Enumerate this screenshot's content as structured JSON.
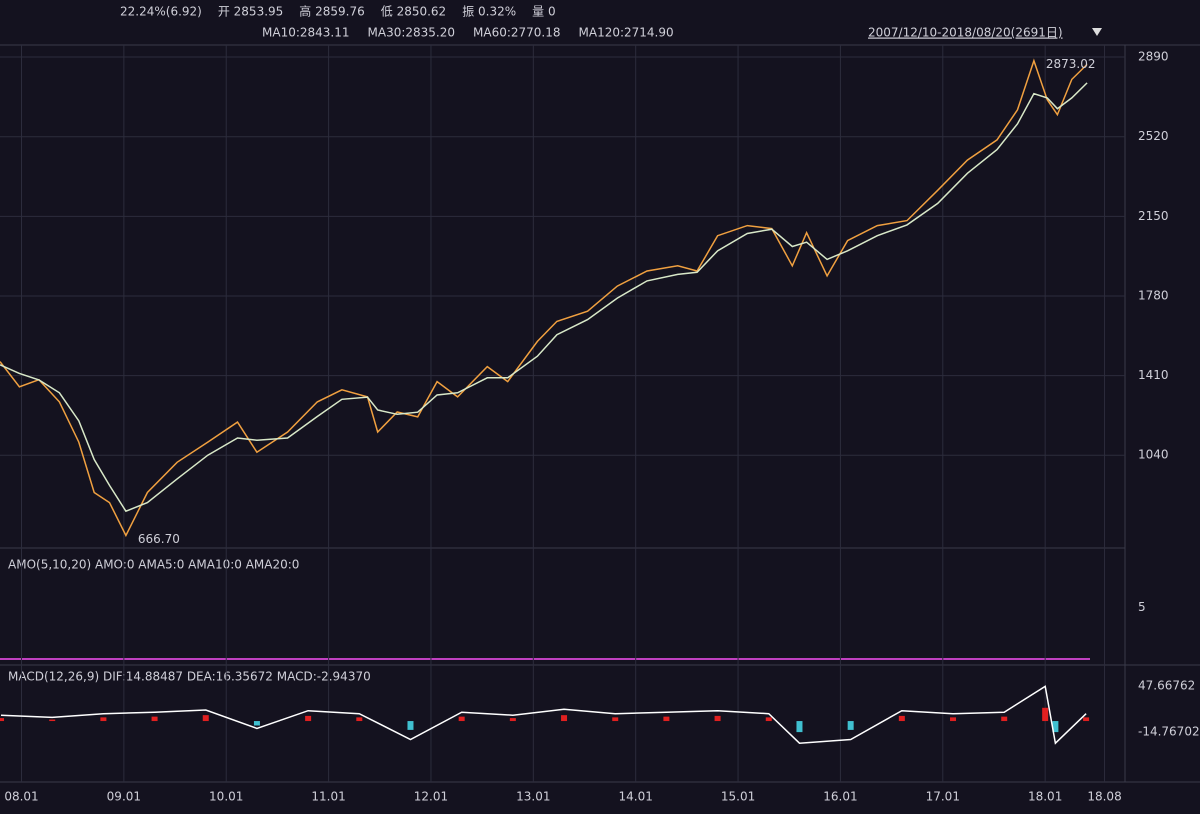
{
  "header": {
    "quote": [
      {
        "text": "22.24%(6.92)",
        "color": "#e04040"
      },
      {
        "text": "开 2853.95",
        "color": "#e04040"
      },
      {
        "text": "高 2859.76",
        "color": "#e04040"
      },
      {
        "text": "低 2850.62",
        "color": "#e04040"
      },
      {
        "text": "振 0.32%",
        "color": "#ffffff"
      },
      {
        "text": "量 0",
        "color": "#ffffff"
      }
    ],
    "ma": [
      {
        "text": "MA10:2843.11",
        "color": "#f0e070"
      },
      {
        "text": "MA30:2835.20",
        "color": "#e040e0"
      },
      {
        "text": "MA60:2770.18",
        "color": "#40c040"
      },
      {
        "text": "MA120:2714.90",
        "color": "#ffffff"
      }
    ],
    "range": "2007/12/10-2018/08/20(2691日)"
  },
  "chart_data": [
    {
      "type": "line",
      "xlim": [
        2007.79,
        2018.78
      ],
      "ylim": [
        609,
        2946
      ],
      "grid": true,
      "xticks": [
        {
          "value": 2008.0,
          "label": "08.01"
        },
        {
          "value": 2009.0,
          "label": "09.01"
        },
        {
          "value": 2010.0,
          "label": "10.01"
        },
        {
          "value": 2011.0,
          "label": "11.01"
        },
        {
          "value": 2012.0,
          "label": "12.01"
        },
        {
          "value": 2013.0,
          "label": "13.01"
        },
        {
          "value": 2014.0,
          "label": "14.01"
        },
        {
          "value": 2015.0,
          "label": "15.01"
        },
        {
          "value": 2016.0,
          "label": "16.01"
        },
        {
          "value": 2017.0,
          "label": "17.01"
        },
        {
          "value": 2018.0,
          "label": "18.01"
        },
        {
          "value": 2018.58,
          "label": "18.08"
        }
      ],
      "yticks": [
        1040,
        1410,
        1780,
        2150,
        2520,
        2890
      ],
      "x": [
        2007.79,
        2007.98,
        2008.17,
        2008.37,
        2008.56,
        2008.71,
        2008.86,
        2009.02,
        2009.23,
        2009.52,
        2009.82,
        2010.11,
        2010.3,
        2010.6,
        2010.89,
        2011.13,
        2011.38,
        2011.48,
        2011.67,
        2011.87,
        2012.06,
        2012.26,
        2012.55,
        2012.75,
        2013.04,
        2013.23,
        2013.53,
        2013.82,
        2014.11,
        2014.41,
        2014.6,
        2014.8,
        2015.09,
        2015.33,
        2015.53,
        2015.67,
        2015.87,
        2016.07,
        2016.36,
        2016.65,
        2016.95,
        2017.24,
        2017.53,
        2017.73,
        2017.89,
        2018.02,
        2018.12,
        2018.26,
        2018.41
      ],
      "series": [
        {
          "color": "#f0a040",
          "values": [
            1475,
            1358,
            1391,
            1288,
            1101,
            867,
            820,
            667,
            867,
            1007,
            1101,
            1194,
            1054,
            1148,
            1288,
            1344,
            1311,
            1148,
            1241,
            1218,
            1382,
            1311,
            1452,
            1382,
            1569,
            1662,
            1709,
            1826,
            1896,
            1920,
            1896,
            2060,
            2107,
            2093,
            1920,
            2074,
            1873,
            2037,
            2107,
            2130,
            2271,
            2411,
            2505,
            2645,
            2873.02,
            2692,
            2622,
            2786,
            2856
          ]
        },
        {
          "color": "#d8e8c8",
          "values": [
            1460,
            1420,
            1390,
            1330,
            1200,
            1020,
            900,
            780,
            820,
            930,
            1040,
            1120,
            1110,
            1120,
            1220,
            1300,
            1310,
            1250,
            1230,
            1240,
            1320,
            1330,
            1400,
            1400,
            1500,
            1600,
            1670,
            1770,
            1850,
            1880,
            1890,
            1990,
            2070,
            2090,
            2010,
            2030,
            1950,
            1990,
            2060,
            2110,
            2210,
            2350,
            2460,
            2580,
            2720,
            2700,
            2650,
            2700,
            2770
          ]
        }
      ],
      "annotations": [
        {
          "text": "666.70",
          "x": 2009.02,
          "y": 667
        },
        {
          "text": "2873.02",
          "x": 2017.89,
          "y": 2873.02
        }
      ]
    },
    {
      "type": "line",
      "title": "AMO(5,10,20) AMO:0 AMA5:0 AMA10:0 AMA20:0",
      "ylim": [
        0,
        10
      ],
      "yticks": [
        5
      ],
      "series": []
    },
    {
      "type": "macd",
      "title": "MACD(12,26,9) DIF:14.88487 DEA:16.35672 MACD:-2.94370",
      "xlim": [
        2007.79,
        2018.78
      ],
      "ylim": [
        -80,
        72
      ],
      "yticks": [
        47.66762,
        -14.76702
      ],
      "x": [
        2007.8,
        2008.3,
        2008.8,
        2009.3,
        2009.8,
        2010.3,
        2010.8,
        2011.3,
        2011.8,
        2012.3,
        2012.8,
        2013.3,
        2013.8,
        2014.3,
        2014.8,
        2015.3,
        2015.6,
        2016.1,
        2016.6,
        2017.1,
        2017.6,
        2018.0,
        2018.1,
        2018.4
      ],
      "series": [
        {
          "color": "#ffffff",
          "values": [
            8,
            5,
            10,
            12,
            15,
            -10,
            14,
            10,
            -25,
            12,
            8,
            16,
            10,
            12,
            14,
            10,
            -30,
            -25,
            14,
            10,
            12,
            47,
            -30,
            10
          ]
        },
        {
          "values": [
            4,
            2,
            5,
            6,
            8,
            -6,
            7,
            5,
            -12,
            6,
            4,
            8,
            5,
            6,
            7,
            5,
            -15,
            -12,
            7,
            5,
            6,
            18,
            -15,
            5
          ],
          "colors": {
            "up": "#e02020",
            "down": "#40c0d0"
          }
        }
      ]
    }
  ]
}
